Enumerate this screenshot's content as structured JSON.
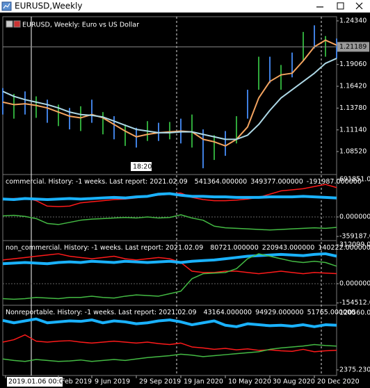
{
  "window": {
    "title": "EURUSD,Weekly"
  },
  "chart_data": [
    {
      "type": "ohlc",
      "title": "EURUSD, Weekly:  Euro vs US Dollar",
      "timer": "18:20",
      "x": [
        0,
        4,
        8,
        12,
        16,
        20,
        24,
        28,
        32,
        36,
        40,
        44,
        48,
        52,
        56,
        60,
        64,
        68,
        72,
        76,
        80,
        84,
        88,
        92,
        96,
        100,
        104,
        108,
        112,
        116,
        120
      ],
      "high": [
        1.162,
        1.155,
        1.158,
        1.152,
        1.148,
        1.142,
        1.138,
        1.14,
        1.148,
        1.133,
        1.128,
        1.118,
        1.114,
        1.122,
        1.12,
        1.121,
        1.125,
        1.13,
        1.112,
        1.105,
        1.11,
        1.128,
        1.16,
        1.2,
        1.2,
        1.19,
        1.205,
        1.23,
        1.238,
        1.225,
        1.222
      ],
      "low": [
        1.13,
        1.125,
        1.13,
        1.126,
        1.12,
        1.116,
        1.112,
        1.11,
        1.12,
        1.106,
        1.1,
        1.092,
        1.09,
        1.098,
        1.098,
        1.1,
        1.095,
        1.09,
        1.065,
        1.075,
        1.08,
        1.095,
        1.125,
        1.16,
        1.168,
        1.16,
        1.175,
        1.195,
        1.21,
        1.2,
        1.198
      ],
      "bar_colors": [
        "#3f7fe0",
        "#2fa83a"
      ],
      "series": [
        {
          "color": "#f4a460",
          "values": [
            1.145,
            1.142,
            1.143,
            1.141,
            1.138,
            1.133,
            1.128,
            1.126,
            1.13,
            1.126,
            1.118,
            1.11,
            1.103,
            1.106,
            1.108,
            1.109,
            1.11,
            1.109,
            1.1,
            1.097,
            1.092,
            1.1,
            1.115,
            1.15,
            1.17,
            1.178,
            1.18,
            1.195,
            1.212,
            1.22,
            1.214
          ]
        },
        {
          "color": "#add8e6",
          "values": [
            1.158,
            1.152,
            1.148,
            1.145,
            1.142,
            1.138,
            1.133,
            1.13,
            1.129,
            1.127,
            1.122,
            1.117,
            1.112,
            1.11,
            1.108,
            1.108,
            1.109,
            1.109,
            1.106,
            1.103,
            1.1,
            1.1,
            1.105,
            1.118,
            1.135,
            1.15,
            1.16,
            1.17,
            1.18,
            1.192,
            1.198
          ]
        }
      ],
      "current_price": {
        "value": 1.21189,
        "label": "1.21189"
      },
      "xlim": [
        0,
        120
      ],
      "ylim": [
        1.0582,
        1.2476
      ],
      "yticks": [
        {
          "value": 1.2434,
          "label": "1.24340"
        },
        {
          "value": 1.1906,
          "label": "1.19060"
        },
        {
          "value": 1.1642,
          "label": "1.16420"
        },
        {
          "value": 1.1378,
          "label": "1.13780"
        },
        {
          "value": 1.1114,
          "label": "1.11140"
        },
        {
          "value": 1.0852,
          "label": "1.08520"
        }
      ]
    },
    {
      "type": "line",
      "title": "commercial. History: -1 weeks. Last report: 2021.02.09",
      "legend_values": [
        541364,
        349377,
        -191987
      ],
      "legend_value_labels": [
        "541364.000000",
        "349377.000000",
        "-191987.000000"
      ],
      "x": [
        0,
        4,
        8,
        12,
        16,
        20,
        24,
        28,
        32,
        36,
        40,
        44,
        48,
        52,
        56,
        60,
        64,
        68,
        72,
        76,
        80,
        84,
        88,
        92,
        96,
        100,
        104,
        108,
        112,
        116,
        120
      ],
      "series": [
        {
          "color": "#ff1a1a",
          "width": 1.5,
          "values": [
            330000,
            340000,
            350000,
            300000,
            200000,
            190000,
            200000,
            260000,
            280000,
            300000,
            320000,
            330000,
            350000,
            380000,
            400000,
            420000,
            440000,
            360000,
            320000,
            300000,
            300000,
            310000,
            330000,
            360000,
            420000,
            480000,
            500000,
            520000,
            560000,
            600000,
            541364
          ]
        },
        {
          "color": "#1ab2ff",
          "width": 4,
          "values": [
            330000,
            320000,
            340000,
            330000,
            320000,
            330000,
            340000,
            330000,
            340000,
            350000,
            360000,
            350000,
            370000,
            380000,
            420000,
            430000,
            400000,
            380000,
            380000,
            370000,
            370000,
            360000,
            360000,
            360000,
            370000,
            370000,
            370000,
            380000,
            370000,
            360000,
            349377
          ]
        },
        {
          "color": "#44bb44",
          "width": 1.5,
          "values": [
            20000,
            30000,
            10000,
            -30000,
            -120000,
            -140000,
            -100000,
            -60000,
            -40000,
            -30000,
            -20000,
            -10000,
            -20000,
            0,
            -20000,
            -10000,
            40000,
            -20000,
            -60000,
            -170000,
            -200000,
            -210000,
            -220000,
            -230000,
            -240000,
            -230000,
            -220000,
            -210000,
            -200000,
            -210000,
            -191987
          ]
        }
      ],
      "xlim": [
        0,
        120
      ],
      "ylim": [
        -422800,
        755900
      ],
      "yticks": [
        {
          "value": 691851,
          "label": "691851.0"
        },
        {
          "value": 0,
          "label": "0.000000"
        },
        {
          "value": -359187,
          "label": "-359187.0"
        }
      ]
    },
    {
      "type": "line",
      "title": "non_commercial. History: -1 weeks. Last report: 2021.02.09",
      "legend_values": [
        80721,
        220943,
        140222
      ],
      "legend_value_labels": [
        "80721.000000",
        "220943.000000",
        "140222.000000"
      ],
      "x": [
        0,
        4,
        8,
        12,
        16,
        20,
        24,
        28,
        32,
        36,
        40,
        44,
        48,
        52,
        56,
        60,
        64,
        68,
        72,
        76,
        80,
        84,
        88,
        92,
        96,
        100,
        104,
        108,
        112,
        116,
        120
      ],
      "series": [
        {
          "color": "#ff1a1a",
          "width": 1.5,
          "values": [
            190000,
            200000,
            210000,
            220000,
            230000,
            240000,
            220000,
            210000,
            200000,
            210000,
            220000,
            200000,
            190000,
            200000,
            210000,
            200000,
            170000,
            100000,
            90000,
            90000,
            100000,
            100000,
            90000,
            80000,
            90000,
            100000,
            90000,
            80000,
            90000,
            85000,
            80721
          ]
        },
        {
          "color": "#1ab2ff",
          "width": 4,
          "values": [
            160000,
            165000,
            170000,
            165000,
            160000,
            170000,
            175000,
            170000,
            180000,
            175000,
            170000,
            180000,
            175000,
            170000,
            175000,
            180000,
            170000,
            180000,
            185000,
            190000,
            200000,
            210000,
            220000,
            225000,
            230000,
            235000,
            230000,
            225000,
            235000,
            240000,
            220943
          ]
        },
        {
          "color": "#44bb44",
          "width": 1.5,
          "values": [
            -120000,
            -125000,
            -120000,
            -110000,
            -115000,
            -120000,
            -110000,
            -110000,
            -100000,
            -110000,
            -115000,
            -100000,
            -90000,
            -95000,
            -100000,
            -80000,
            -60000,
            40000,
            80000,
            85000,
            90000,
            120000,
            200000,
            240000,
            220000,
            200000,
            180000,
            170000,
            180000,
            170000,
            140222
          ]
        }
      ],
      "xlim": [
        0,
        120
      ],
      "ylim": [
        -167200,
        334400
      ],
      "yticks": [
        {
          "value": 312099,
          "label": "312099.0"
        },
        {
          "value": 0,
          "label": "0.000000"
        },
        {
          "value": -154512,
          "label": "-154512.0"
        }
      ]
    },
    {
      "type": "line",
      "title": "Nonreportable. History: -1 weeks. Last report: 2021.02.09",
      "legend_values": [
        43164,
        94929,
        51765
      ],
      "legend_value_labels": [
        "43164.000000",
        "94929.000000",
        "51765.000000"
      ],
      "x": [
        0,
        4,
        8,
        12,
        16,
        20,
        24,
        28,
        32,
        36,
        40,
        44,
        48,
        52,
        56,
        60,
        64,
        68,
        72,
        76,
        80,
        84,
        88,
        92,
        96,
        100,
        104,
        108,
        112,
        116,
        120
      ],
      "series": [
        {
          "color": "#ff1a1a",
          "width": 1.5,
          "values": [
            60000,
            65000,
            75000,
            62000,
            60000,
            62000,
            63000,
            60000,
            58000,
            60000,
            62000,
            60000,
            58000,
            60000,
            57000,
            55000,
            58000,
            50000,
            48000,
            45000,
            47000,
            44000,
            46000,
            43000,
            44000,
            42000,
            41000,
            45000,
            40000,
            42000,
            43164
          ]
        },
        {
          "color": "#1ab2ff",
          "width": 4,
          "values": [
            105000,
            100000,
            104000,
            108000,
            100000,
            102000,
            104000,
            103000,
            106000,
            100000,
            104000,
            102000,
            98000,
            100000,
            104000,
            106000,
            102000,
            96000,
            100000,
            104000,
            95000,
            92000,
            98000,
            96000,
            94000,
            95000,
            93000,
            96000,
            92000,
            96000,
            94929
          ]
        },
        {
          "color": "#44bb44",
          "width": 1.5,
          "values": [
            25000,
            22000,
            20000,
            24000,
            22000,
            20000,
            21000,
            23000,
            20000,
            22000,
            24000,
            22000,
            25000,
            28000,
            30000,
            32000,
            35000,
            33000,
            30000,
            32000,
            34000,
            36000,
            38000,
            40000,
            45000,
            48000,
            50000,
            52000,
            55000,
            53000,
            51765
          ]
        }
      ],
      "xlim": [
        0,
        120
      ],
      "ylim": [
        -9150,
        133530
      ],
      "yticks": [
        {
          "value": 120560,
          "label": "120560.0"
        },
        {
          "value": 2375.23,
          "label": "2375.230"
        }
      ],
      "xticks": [
        {
          "value": 1,
          "label": "2019.01.06 00:00"
        },
        {
          "value": 20,
          "label": "Feb 2019"
        },
        {
          "value": 32,
          "label": "9 Jun 2019"
        },
        {
          "value": 48,
          "label": "29 Sep 2019"
        },
        {
          "value": 64,
          "label": "19 Jan 2020"
        },
        {
          "value": 80,
          "label": "10 May 2020"
        },
        {
          "value": 96,
          "label": "30 Aug 2020"
        },
        {
          "value": 112,
          "label": "20 Dec 2020"
        }
      ]
    }
  ]
}
